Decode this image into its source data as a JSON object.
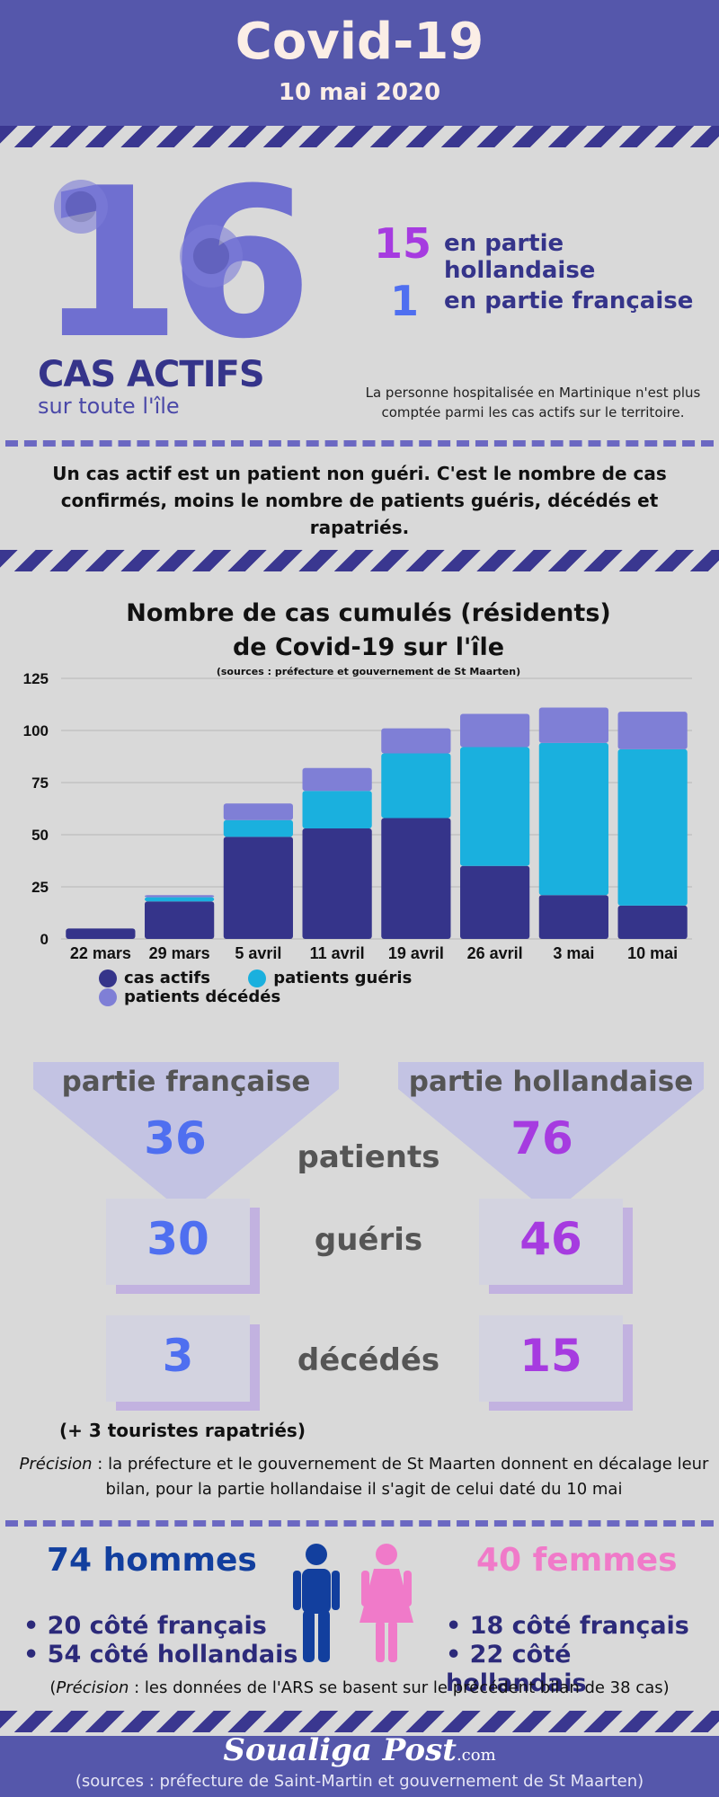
{
  "header": {
    "title": "Covid-19",
    "date": "10 mai 2020"
  },
  "active": {
    "total": "16",
    "label": "CAS ACTIFS",
    "sublabel": "sur toute l'île",
    "dutch_count": "15",
    "dutch_label": "en partie hollandaise",
    "french_count": "1",
    "french_label": "en partie française",
    "note": "La personne hospitalisée en Martinique n'est plus comptée parmi les cas actifs sur le territoire."
  },
  "definition": "Un cas actif est un patient non guéri. C'est le nombre de cas confirmés, moins le nombre de patients guéris, décédés et rapatriés.",
  "chart_data": {
    "type": "bar",
    "stacked": true,
    "title_line1": "Nombre de  cas cumulés (résidents)",
    "title_line2": "de Covid-19 sur l'île",
    "subtitle": "(sources : préfecture et gouvernement de St Maarten)",
    "categories": [
      "22 mars",
      "29 mars",
      "5 avril",
      "11 avril",
      "19 avril",
      "26 avril",
      "3 mai",
      "10 mai"
    ],
    "series": [
      {
        "name": "cas actifs",
        "color": "#35348a",
        "values": [
          5,
          18,
          49,
          53,
          58,
          35,
          21,
          16
        ]
      },
      {
        "name": "patients guéris",
        "color": "#1ab0de",
        "values": [
          0,
          2,
          8,
          18,
          31,
          57,
          73,
          75
        ]
      },
      {
        "name": "patients décédés",
        "color": "#7f7fd6",
        "values": [
          0,
          1,
          8,
          11,
          12,
          16,
          17,
          18
        ]
      }
    ],
    "yticks": [
      "0",
      "25",
      "50",
      "75",
      "100",
      "125"
    ],
    "ylim": [
      0,
      125
    ],
    "grid": true,
    "legend": "bottom"
  },
  "comparison": {
    "french_header": "partie française",
    "dutch_header": "partie hollandaise",
    "patients_label": "patients",
    "gueris_label": "guéris",
    "deces_label": "décédés",
    "french_patients": "36",
    "dutch_patients": "76",
    "french_gueris": "30",
    "dutch_gueris": "46",
    "french_deces": "3",
    "dutch_deces": "15",
    "rapatries": "(+ 3 touristes rapatriés)",
    "precision_label": "Précision",
    "precision_text": " : la préfecture et le gouvernement de St Maarten donnent en décalage leur bilan, pour la partie hollandaise il s'agit de celui daté du 10 mai"
  },
  "gender": {
    "men": "74 hommes",
    "women": "40 femmes",
    "men_fr": "20 côté français",
    "men_nl": "54 côté hollandais",
    "women_fr": "18 côté français",
    "women_nl": "22 côté hollandais",
    "precision_label": "Précision",
    "precision_text": " : les données de l'ARS se basent sur le précédent bilan de 38 cas",
    "men_color": "#123f9e",
    "women_color": "#f07ac9"
  },
  "footer": {
    "brand": "Soualiga Post",
    "brand_suffix": ".com",
    "sources": "(sources : préfecture de Saint-Martin et gouvernement de St Maarten)"
  }
}
